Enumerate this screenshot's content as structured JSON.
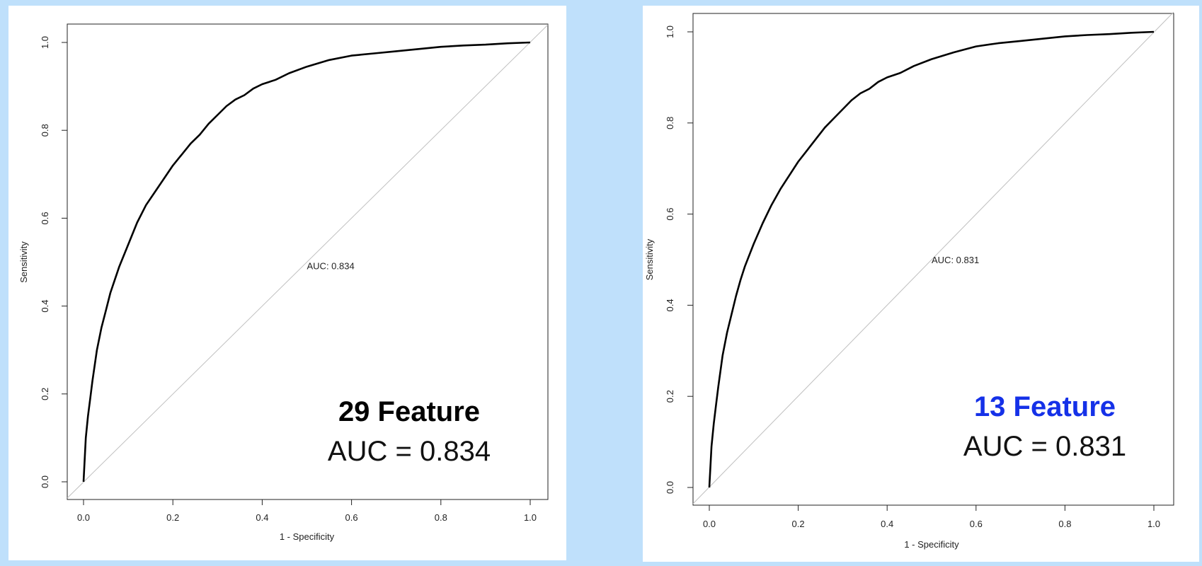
{
  "chart_data": [
    {
      "type": "line",
      "xlabel": "1 - Specificity",
      "ylabel": "Sensitivity",
      "xlim": [
        0,
        1
      ],
      "ylim": [
        0,
        1
      ],
      "xticks": [
        "0.0",
        "0.2",
        "0.4",
        "0.6",
        "0.8",
        "1.0"
      ],
      "yticks": [
        "0.0",
        "0.2",
        "0.4",
        "0.6",
        "0.8",
        "1.0"
      ],
      "grid": false,
      "plot_annotation": "AUC: 0.834",
      "caption_title": "29 Feature",
      "caption_title_color": "#000000",
      "caption_auc": "AUC = 0.834",
      "series": [
        {
          "x": [
            0,
            0.005,
            0.01,
            0.015,
            0.02,
            0.03,
            0.04,
            0.05,
            0.06,
            0.07,
            0.08,
            0.1,
            0.12,
            0.14,
            0.16,
            0.18,
            0.2,
            0.22,
            0.24,
            0.26,
            0.28,
            0.3,
            0.32,
            0.34,
            0.36,
            0.38,
            0.4,
            0.43,
            0.46,
            0.5,
            0.55,
            0.6,
            0.65,
            0.7,
            0.75,
            0.8,
            0.85,
            0.9,
            0.95,
            1.0
          ],
          "y": [
            0,
            0.1,
            0.15,
            0.19,
            0.23,
            0.3,
            0.35,
            0.39,
            0.43,
            0.46,
            0.49,
            0.54,
            0.59,
            0.63,
            0.66,
            0.69,
            0.72,
            0.745,
            0.77,
            0.79,
            0.815,
            0.835,
            0.855,
            0.87,
            0.88,
            0.895,
            0.905,
            0.915,
            0.93,
            0.945,
            0.96,
            0.97,
            0.975,
            0.98,
            0.985,
            0.99,
            0.993,
            0.995,
            0.998,
            1.0
          ]
        },
        {
          "x": [
            0,
            1
          ],
          "y": [
            0,
            1
          ]
        }
      ]
    },
    {
      "type": "line",
      "xlabel": "1 - Specificity",
      "ylabel": "Sensitivity",
      "xlim": [
        0,
        1
      ],
      "ylim": [
        0,
        1
      ],
      "xticks": [
        "0.0",
        "0.2",
        "0.4",
        "0.6",
        "0.8",
        "1.0"
      ],
      "yticks": [
        "0.0",
        "0.2",
        "0.4",
        "0.6",
        "0.8",
        "1.0"
      ],
      "grid": false,
      "plot_annotation": "AUC: 0.831",
      "caption_title": "13 Feature",
      "caption_title_color": "#1531e8",
      "caption_auc": "AUC = 0.831",
      "series": [
        {
          "x": [
            0,
            0.005,
            0.01,
            0.015,
            0.02,
            0.03,
            0.04,
            0.05,
            0.06,
            0.07,
            0.08,
            0.1,
            0.12,
            0.14,
            0.16,
            0.18,
            0.2,
            0.22,
            0.24,
            0.26,
            0.28,
            0.3,
            0.32,
            0.34,
            0.36,
            0.38,
            0.4,
            0.43,
            0.46,
            0.5,
            0.55,
            0.6,
            0.65,
            0.7,
            0.75,
            0.8,
            0.85,
            0.9,
            0.95,
            1.0
          ],
          "y": [
            0,
            0.09,
            0.14,
            0.18,
            0.22,
            0.29,
            0.34,
            0.38,
            0.42,
            0.455,
            0.485,
            0.535,
            0.58,
            0.62,
            0.655,
            0.685,
            0.715,
            0.74,
            0.765,
            0.79,
            0.81,
            0.83,
            0.85,
            0.865,
            0.875,
            0.89,
            0.9,
            0.91,
            0.925,
            0.94,
            0.955,
            0.968,
            0.975,
            0.98,
            0.985,
            0.99,
            0.993,
            0.995,
            0.998,
            1.0
          ]
        },
        {
          "x": [
            0,
            1
          ],
          "y": [
            0,
            1
          ]
        }
      ]
    }
  ]
}
